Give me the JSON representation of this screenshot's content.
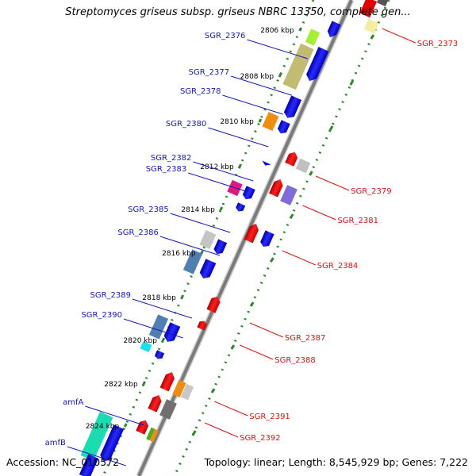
{
  "title": "Streptomyces griseus subsp. griseus NBRC 13350, complete gen...",
  "footer": {
    "accession": "Accession: NC_010572",
    "topology": "Topology: linear; Length: 8,545,929 bp; Genes: 7,222"
  },
  "colors": {
    "backbone": "#8a8a8a",
    "forward_label": "#1515c8",
    "reverse_label": "#e01010",
    "tick": "#2a8a2a"
  },
  "ticks": [
    {
      "label": "2806 kbp",
      "pos": 37
    },
    {
      "label": "2808 kbp",
      "pos": 95
    },
    {
      "label": "2810 kbp",
      "pos": 152
    },
    {
      "label": "2812 kbp",
      "pos": 209
    },
    {
      "label": "2814 kbp",
      "pos": 263
    },
    {
      "label": "2816 kbp",
      "pos": 318
    },
    {
      "label": "2818 kbp",
      "pos": 374
    },
    {
      "label": "2820 kbp",
      "pos": 428
    },
    {
      "label": "2822 kbp",
      "pos": 483
    },
    {
      "label": "2824 kbp",
      "pos": 536
    }
  ],
  "forward_genes": [
    {
      "name": "SGR_2376",
      "pos": 48
    },
    {
      "name": "SGR_2377",
      "pos": 94
    },
    {
      "name": "SGR_2378",
      "pos": 118
    },
    {
      "name": "SGR_2380",
      "pos": 159
    },
    {
      "name": "SGR_2382",
      "pos": 202
    },
    {
      "name": "SGR_2383",
      "pos": 216
    },
    {
      "name": "SGR_2385",
      "pos": 267
    },
    {
      "name": "SGR_2386",
      "pos": 296
    },
    {
      "name": "SGR_2389",
      "pos": 375
    },
    {
      "name": "SGR_2390",
      "pos": 400
    },
    {
      "name": "amfA",
      "pos": 510
    },
    {
      "name": "amfB",
      "pos": 561
    }
  ],
  "reverse_genes": [
    {
      "name": "SGR_2373",
      "pos": 56
    },
    {
      "name": "SGR_2379",
      "pos": 242
    },
    {
      "name": "SGR_2381",
      "pos": 279
    },
    {
      "name": "SGR_2384",
      "pos": 336
    },
    {
      "name": "SGR_2387",
      "pos": 427
    },
    {
      "name": "SGR_2388",
      "pos": 455
    },
    {
      "name": "SGR_2391",
      "pos": 526
    },
    {
      "name": "SGR_2392",
      "pos": 553
    }
  ]
}
